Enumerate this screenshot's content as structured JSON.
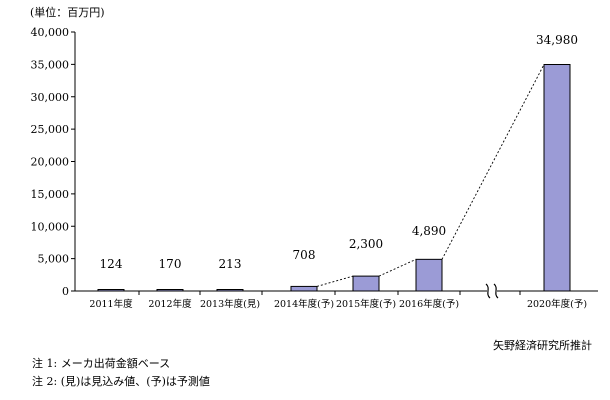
{
  "chart_data": {
    "type": "bar",
    "unit_label": "(単位：百万円)",
    "title": "",
    "xlabel": "",
    "ylabel": "",
    "ylim": [
      0,
      40000
    ],
    "yticks": [
      "0",
      "5,000",
      "10,000",
      "15,000",
      "20,000",
      "25,000",
      "30,000",
      "35,000",
      "40,000"
    ],
    "categories": [
      "2011年度",
      "2012年度",
      "2013年度(見)",
      "2014年度(予)",
      "2015年度(予)",
      "2016年度(予)",
      "2020年度(予)"
    ],
    "values": [
      124,
      170,
      213,
      708,
      2300,
      4890,
      34980
    ],
    "value_labels": [
      "124",
      "170",
      "213",
      "708",
      "2,300",
      "4,890",
      "34,980"
    ],
    "axis_break_between": [
      "2016年度(予)",
      "2020年度(予)"
    ],
    "trend_line_from": "2014年度(予)",
    "grid": false,
    "legend": "none",
    "colors": {
      "bar": "#9b9bd6",
      "bar_stroke": "#000000"
    }
  },
  "source": "矢野経済研究所推計",
  "notes": [
    "注 1:  メーカ出荷金額ベース",
    "注 2:  (見)は見込み値、(予)は予測値"
  ]
}
